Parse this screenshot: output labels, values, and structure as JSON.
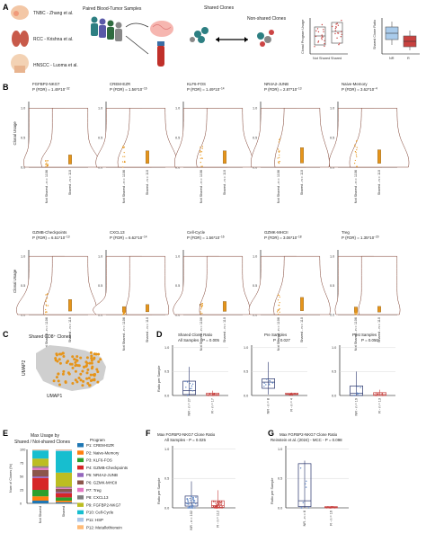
{
  "panel_letters": [
    "A",
    "B",
    "C",
    "D",
    "E",
    "F",
    "G"
  ],
  "colors": {
    "orange": "#E69419",
    "violin_edge": "#7a3a2a",
    "red": "#C8413F",
    "blue": "#5B84C4",
    "light_blue": "#A9CBEB",
    "navy": "#27336B",
    "gray": "#bfbfbf",
    "grid": "#d9d9d9"
  },
  "panel_a": {
    "cohorts": [
      "TNBC - Zhang et al.",
      "RCC - Krishna et al.",
      "HNSCC - Luoma et al."
    ],
    "paired_title": "Paired Blood-Tumor Samples",
    "shared_label": "Shared Clones",
    "nonshared_label": "Non-shared Clones",
    "usage_ylabel": "Clonal Program Usage",
    "usage_categories": [
      "Not Shared",
      "Shared"
    ],
    "ratio_ylabel": "Shared Clone Ratio",
    "ratio_categories": [
      "NR",
      "R"
    ]
  },
  "panel_b": {
    "ylabel": "Clonal Usage",
    "categories": [
      "Not Shared - n = 1106",
      "Shared - n = 110"
    ],
    "rows": [
      [
        {
          "name": "FGFBP2-NKG7",
          "p": "P (FDR) = 1.49*10",
          "exp": "−32",
          "ticks": [
            "0.0",
            "0.5",
            "1.0"
          ]
        },
        {
          "name": "CREM-EZR",
          "p": "P (FDR) = 1.56*10",
          "exp": "−16",
          "ticks": [
            "0.0",
            "0.5",
            "1.0"
          ]
        },
        {
          "name": "KLF6-FOS",
          "p": "P (FDR) = 1.49*10",
          "exp": "−14",
          "ticks": [
            "0.0",
            "0.5",
            "1.0"
          ]
        },
        {
          "name": "NR4A2-JUNB",
          "p": "P (FDR) = 2.87*10",
          "exp": "−13",
          "ticks": [
            "0.0",
            "0.5",
            "1.0"
          ]
        },
        {
          "name": "Naive-Memory",
          "p": "P (FDR) = 3.62*10",
          "exp": "−4",
          "ticks": [
            "0.0",
            "0.5",
            "1.0"
          ]
        }
      ],
      [
        {
          "name": "GZMB-Checkpoints",
          "p": "P (FDR) = 6.51*10",
          "exp": "−13",
          "ticks": [
            "0.0",
            "0.5",
            "1.0"
          ]
        },
        {
          "name": "CXCL13",
          "p": "P (FDR) = 6.62*10",
          "exp": "−14",
          "ticks": [
            "0.0",
            "0.5",
            "1.0"
          ]
        },
        {
          "name": "Cell-Cycle",
          "p": "P (FDR) = 1.56*10",
          "exp": "−16",
          "ticks": [
            "0.0",
            "0.5",
            "1.0"
          ]
        },
        {
          "name": "GZMK-MHCII",
          "p": "P (FDR) = 3.06*10",
          "exp": "−18",
          "ticks": [
            "0.0",
            "0.5",
            "1.0"
          ]
        },
        {
          "name": "Treg",
          "p": "P (FDR) = 1.35*10",
          "exp": "−20",
          "ticks": [
            "0.0",
            "0.5",
            "1.0"
          ]
        }
      ]
    ]
  },
  "panel_c": {
    "title": "Shared CD8⁺ Clones",
    "xlabel": "UMAP1",
    "ylabel": "UMAP2"
  },
  "panel_d": {
    "ylabel": "Ratio per Sample",
    "ticks": [
      "0.0",
      "0.5",
      "1.0"
    ],
    "plots": [
      {
        "title": "Shared Clone Ratio",
        "subtitle": "All Samples - P = 0.005",
        "cats": [
          "NR - n = 27",
          "R - n = 17"
        ]
      },
      {
        "title": "Pre Samples",
        "subtitle": "P = 0.027",
        "cats": [
          "NR - n = 8",
          "R - n = 4"
        ]
      },
      {
        "title": "Post Samples",
        "subtitle": "P = 0.050",
        "cats": [
          "NR - n = 19",
          "R - n = 13"
        ]
      }
    ]
  },
  "panel_e": {
    "title_line1": "Max Usage by",
    "title_line2": "Shared / Not-shared Clones",
    "ylabel": "Num of Clones (%)",
    "yticks": [
      "0",
      "25",
      "50",
      "75",
      "100"
    ],
    "categories": [
      "Not Shared",
      "Shared"
    ],
    "legend_title": "Program",
    "programs": [
      "P1: CREM-EZR",
      "P2: Naive-Memory",
      "P3: KLF6-FOS",
      "P4: GZMB-Checkpoints",
      "P5: NR4A2-JUNB",
      "P6: GZMK-MHCII",
      "P7: Treg",
      "P8: CXCL13",
      "P9: FGFBP2-NKG7",
      "P10: Cell-Cycle",
      "P11: HSP",
      "P12: Metallothionein"
    ],
    "program_colors": [
      "#1F77B4",
      "#FF7F0E",
      "#2CA02C",
      "#D62728",
      "#9467BD",
      "#8C564B",
      "#E377C2",
      "#7F7F7F",
      "#BCBD22",
      "#17BECF",
      "#AEC7E8",
      "#FFBB78"
    ]
  },
  "panel_f": {
    "title": "Max FGFBP2-NKG7 Clone Ratio",
    "subtitle": "All Samples - P = 0.025",
    "ylabel": "Ratio per Sample",
    "ticks": [
      "0.0",
      "0.5",
      "1.0"
    ],
    "cats": [
      "NR - n = 102",
      "R - n = 112"
    ]
  },
  "panel_g": {
    "title": "Max FGFBP2-NKG7 Clone Ratio",
    "subtitle": "Reinstein et al. (2024) - MCC - P = 0.098",
    "ylabel": "Ratio per Sample",
    "ticks": [
      "0.0",
      "0.5",
      "1.0"
    ],
    "cats": [
      "NR - n = 8",
      "R - n = 16"
    ]
  },
  "chart_data": [
    {
      "type": "bar",
      "panel": "E",
      "categories": [
        "Not Shared",
        "Shared"
      ],
      "series": [
        {
          "name": "P1: CREM-EZR",
          "values": [
            5,
            2
          ]
        },
        {
          "name": "P2: Naive-Memory",
          "values": [
            8,
            3
          ]
        },
        {
          "name": "P3: KLF6-FOS",
          "values": [
            12,
            6
          ]
        },
        {
          "name": "P4: GZMB-Checkpoints",
          "values": [
            22,
            8
          ]
        },
        {
          "name": "P5: NR4A2-JUNB",
          "values": [
            3,
            2
          ]
        },
        {
          "name": "P6: GZMK-MHCII",
          "values": [
            12,
            6
          ]
        },
        {
          "name": "P7: Treg",
          "values": [
            4,
            2
          ]
        },
        {
          "name": "P8: CXCL13",
          "values": [
            3,
            2
          ]
        },
        {
          "name": "P9: FGFBP2-NKG7",
          "values": [
            14,
            26
          ]
        },
        {
          "name": "P10: Cell-Cycle",
          "values": [
            15,
            40
          ]
        },
        {
          "name": "P11: HSP",
          "values": [
            1,
            2
          ]
        },
        {
          "name": "P12: Metallothionein",
          "values": [
            1,
            1
          ]
        }
      ],
      "ylabel": "Num of Clones (%)",
      "ylim": [
        0,
        100
      ]
    },
    {
      "type": "box",
      "panel": "D",
      "plots": [
        {
          "title": "Shared Clone Ratio",
          "categories": [
            "NR",
            "R"
          ],
          "median": [
            0.1,
            0.02
          ],
          "q1": [
            0.02,
            0.0
          ],
          "q3": [
            0.3,
            0.05
          ],
          "whisker": [
            [
              0,
              0.6
            ],
            [
              0,
              0.1
            ]
          ]
        },
        {
          "title": "Pre Samples",
          "categories": [
            "NR",
            "R"
          ],
          "median": [
            0.28,
            0.03
          ],
          "q1": [
            0.15,
            0.02
          ],
          "q3": [
            0.35,
            0.05
          ],
          "whisker": [
            [
              0.02,
              0.7
            ],
            [
              0.0,
              0.06
            ]
          ]
        },
        {
          "title": "Post Samples",
          "categories": [
            "NR",
            "R"
          ],
          "median": [
            0.05,
            0.02
          ],
          "q1": [
            0.0,
            0.0
          ],
          "q3": [
            0.2,
            0.06
          ],
          "whisker": [
            [
              0,
              0.5
            ],
            [
              0,
              0.12
            ]
          ]
        }
      ],
      "ylim": [
        0,
        1
      ]
    },
    {
      "type": "box",
      "panel": "F",
      "categories": [
        "NR",
        "R"
      ],
      "median": [
        0.08,
        0.04
      ],
      "q1": [
        0.03,
        0.01
      ],
      "q3": [
        0.2,
        0.12
      ],
      "whisker": [
        [
          0,
          0.45
        ],
        [
          0,
          0.3
        ]
      ],
      "ylim": [
        0,
        1
      ]
    },
    {
      "type": "box",
      "panel": "G",
      "categories": [
        "NR",
        "R"
      ],
      "median": [
        0.12,
        0.01
      ],
      "q1": [
        0.02,
        0.0
      ],
      "q3": [
        0.75,
        0.02
      ],
      "whisker": [
        [
          0,
          0.8
        ],
        [
          0,
          0.03
        ]
      ],
      "ylim": [
        0,
        1
      ]
    }
  ]
}
